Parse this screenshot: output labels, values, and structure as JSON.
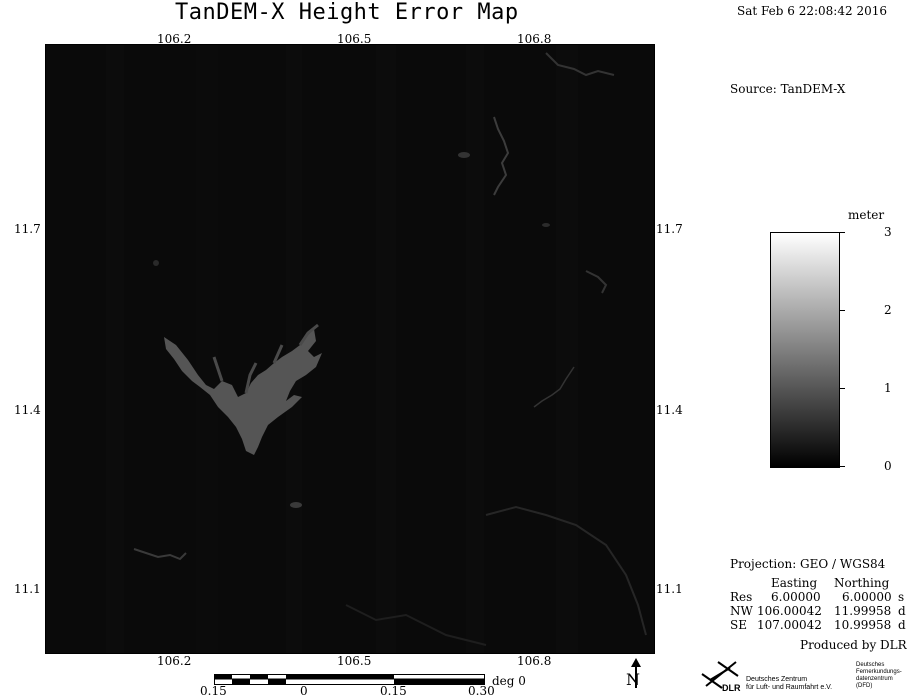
{
  "title": "TanDEM-X Height Error Map",
  "timestamp": "Sat Feb  6 22:08:42 2016",
  "source": "Source: TanDEM-X",
  "axes": {
    "lon_ticks": [
      "106.2",
      "106.5",
      "106.8"
    ],
    "lat_ticks": [
      "11.7",
      "11.4",
      "11.1"
    ]
  },
  "colorbar": {
    "unit": "meter",
    "labels": [
      "3",
      "2",
      "1",
      "0"
    ],
    "min": 0,
    "max": 3,
    "colors": {
      "high": "#ffffff",
      "low": "#000000"
    }
  },
  "projection": {
    "label": "Projection: GEO / WGS84",
    "header_easting": "Easting",
    "header_northing": "Northing",
    "rows": [
      {
        "name": "Res",
        "easting": "6.00000",
        "northing": "6.00000",
        "unit": "s"
      },
      {
        "name": "NW",
        "easting": "106.00042",
        "northing": "11.99958",
        "unit": "d"
      },
      {
        "name": "SE",
        "easting": "107.00042",
        "northing": "10.99958",
        "unit": "d"
      }
    ]
  },
  "produced_by": "Produced by DLR",
  "scalebar": {
    "labels": [
      "0.15",
      "0",
      "0.15",
      "0.30"
    ],
    "unit": "deg 0"
  },
  "north": "N",
  "logo": {
    "short": "DLR",
    "line1": "Deutsches Zentrum",
    "line2": "für Luft- und Raumfahrt e.V.",
    "dfd1": "Deutsches",
    "dfd2": "Fernerkundungs-",
    "dfd3": "datenzentrum",
    "dfd4": "(DFD)"
  },
  "map_colors": {
    "background": "#0a0a0a",
    "water": "#555555",
    "rivers": "#3c3c3c"
  }
}
